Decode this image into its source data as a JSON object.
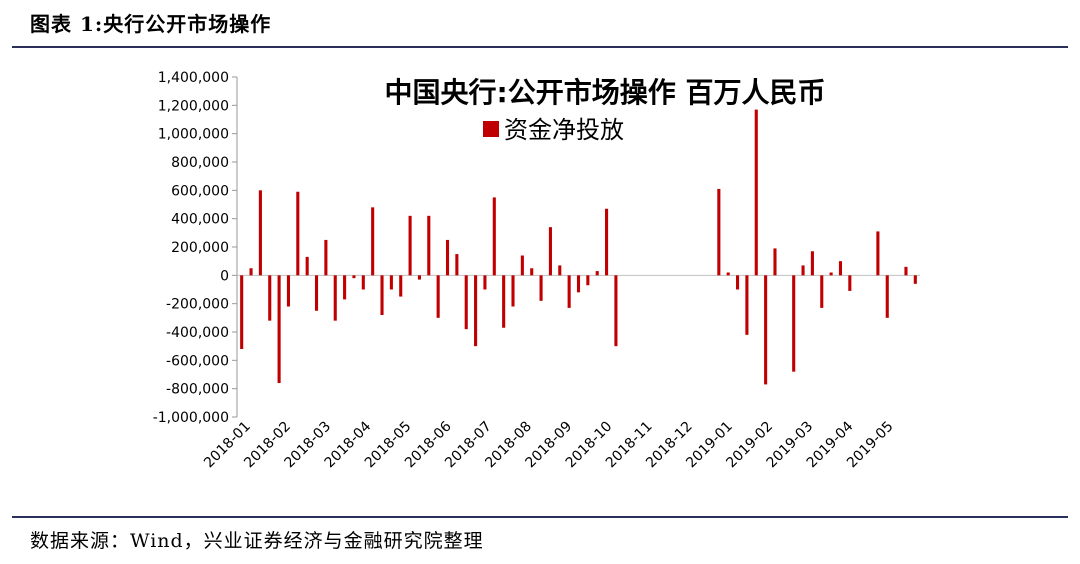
{
  "header": {
    "title": "图表 1:央行公开市场操作"
  },
  "footer": {
    "source": "数据来源：Wind，兴业证券经济与金融研究院整理"
  },
  "colors": {
    "bar": "#c00000",
    "rule": "#2b2f5c",
    "axis": "#999999",
    "zero_line": "#c0c0c0"
  },
  "chart_data": {
    "type": "bar",
    "title": "中国央行:公开市场操作 百万人民币",
    "legend": {
      "label": "资金净投放",
      "placement": "top-center"
    },
    "ylim": [
      -1000000,
      1400000
    ],
    "yticks": [
      1400000,
      1200000,
      1000000,
      800000,
      600000,
      400000,
      200000,
      0,
      -200000,
      -400000,
      -600000,
      -800000,
      -1000000
    ],
    "ytick_labels": [
      "1,400,000",
      "1,200,000",
      "1,000,000",
      "800,000",
      "600,000",
      "400,000",
      "200,000",
      "0",
      "-200,000",
      "-400,000",
      "-600,000",
      "-800,000",
      "-1,000,000"
    ],
    "xticks": [
      "2018-01",
      "2018-02",
      "2018-03",
      "2018-04",
      "2018-05",
      "2018-06",
      "2018-07",
      "2018-08",
      "2018-09",
      "2018-10",
      "2018-11",
      "2018-12",
      "2019-01",
      "2019-02",
      "2019-03",
      "2019-04",
      "2019-05"
    ],
    "grid": false,
    "series": [
      {
        "values": [
          -520000,
          50000,
          600000,
          -320000,
          -760000,
          -220000,
          590000,
          130000,
          -250000,
          250000,
          -320000,
          -170000,
          -20000,
          -100000,
          480000,
          -280000,
          -100000,
          -150000,
          420000,
          -30000,
          420000,
          -300000,
          250000,
          150000,
          -380000,
          -500000,
          -100000,
          550000,
          -370000,
          -220000,
          140000,
          50000,
          -180000,
          340000,
          70000,
          -230000,
          -120000,
          -70000,
          30000,
          470000,
          -500000,
          0,
          0,
          0,
          0,
          0,
          0,
          0,
          0,
          0,
          0,
          610000,
          20000,
          -100000,
          -420000,
          1170000,
          -770000,
          190000,
          0,
          -680000,
          70000,
          170000,
          -230000,
          20000,
          100000,
          -110000,
          0,
          0,
          310000,
          -300000,
          0,
          60000,
          -60000
        ]
      }
    ]
  }
}
